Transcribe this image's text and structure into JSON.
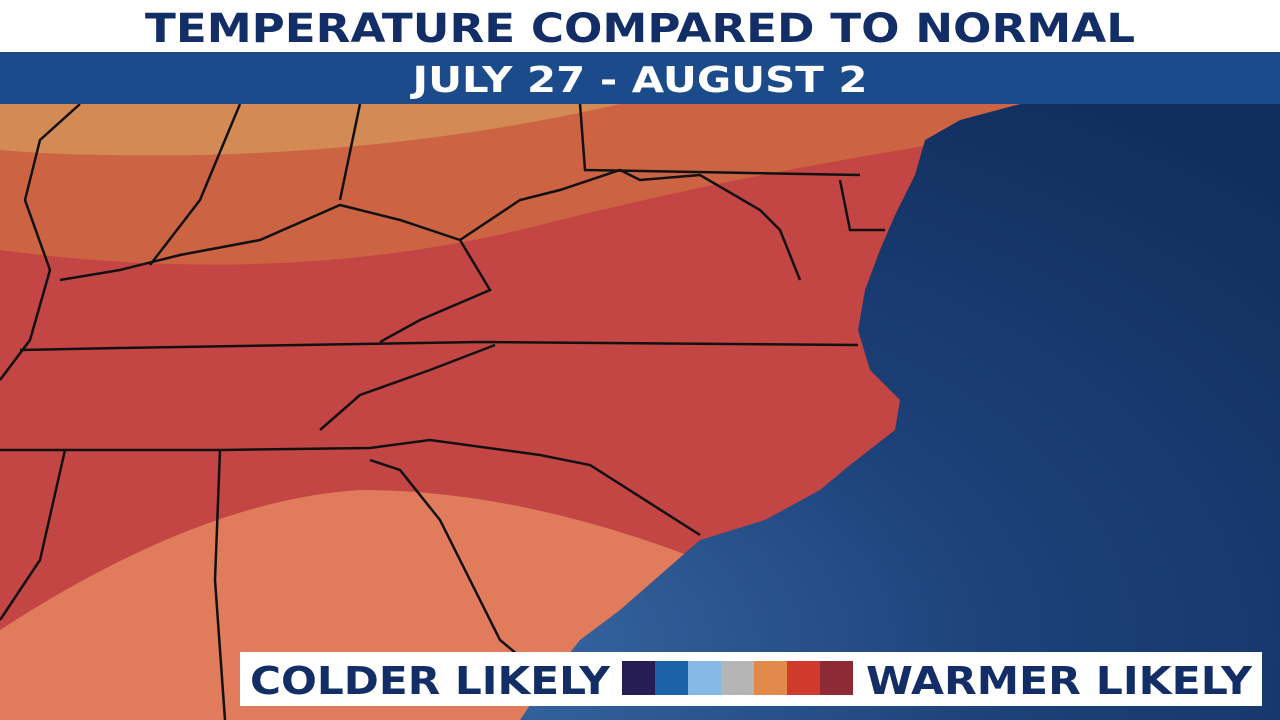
{
  "header": {
    "title": "TEMPERATURE COMPARED TO NORMAL",
    "subtitle": "JULY 27 - AUGUST 2"
  },
  "legend": {
    "left_label": "COLDER LIKELY",
    "right_label": "WARMER LIKELY",
    "colors": [
      "#261d55",
      "#1c62a8",
      "#86b9e6",
      "#b5b5b5",
      "#e08a4c",
      "#cf3a2c",
      "#8e2a36"
    ]
  }
}
